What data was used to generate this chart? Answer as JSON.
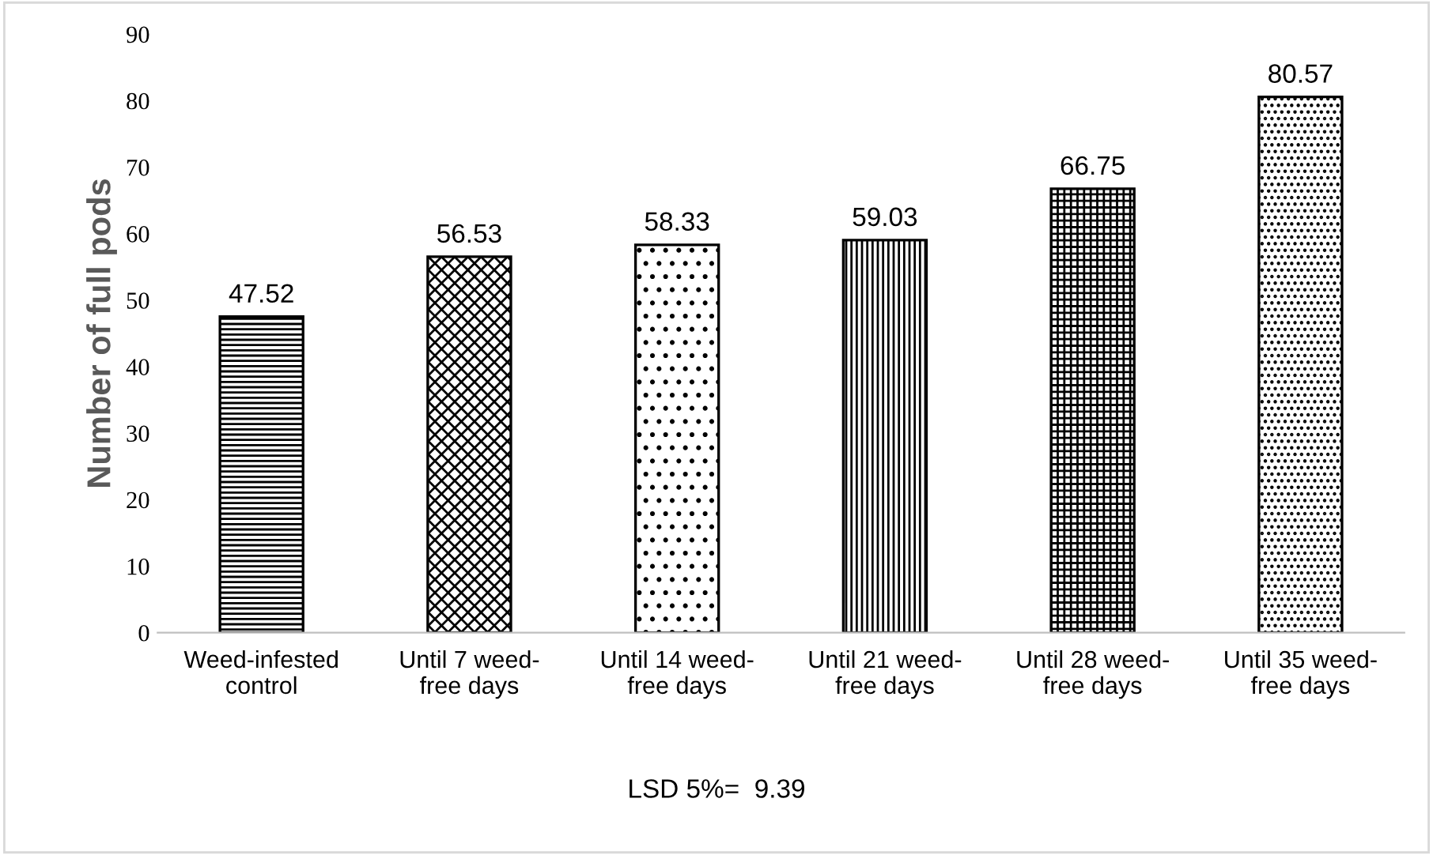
{
  "chart_data": {
    "type": "bar",
    "ylabel": "Number of full pods",
    "categories": [
      "Weed-infested\ncontrol",
      "Until 7 weed-\nfree days",
      "Until 14 weed-\nfree days",
      "Until 21 weed-\nfree days",
      "Until 28 weed-\nfree days",
      "Until 35 weed-\nfree days"
    ],
    "values": [
      47.52,
      56.53,
      58.33,
      59.03,
      66.75,
      80.57
    ],
    "ylim": [
      0,
      90
    ],
    "yticks": [
      0,
      10,
      20,
      30,
      40,
      50,
      60,
      70,
      80,
      90
    ],
    "data_labels": true,
    "grid": false,
    "annotations": [
      "LSD 5%=  9.39"
    ]
  }
}
